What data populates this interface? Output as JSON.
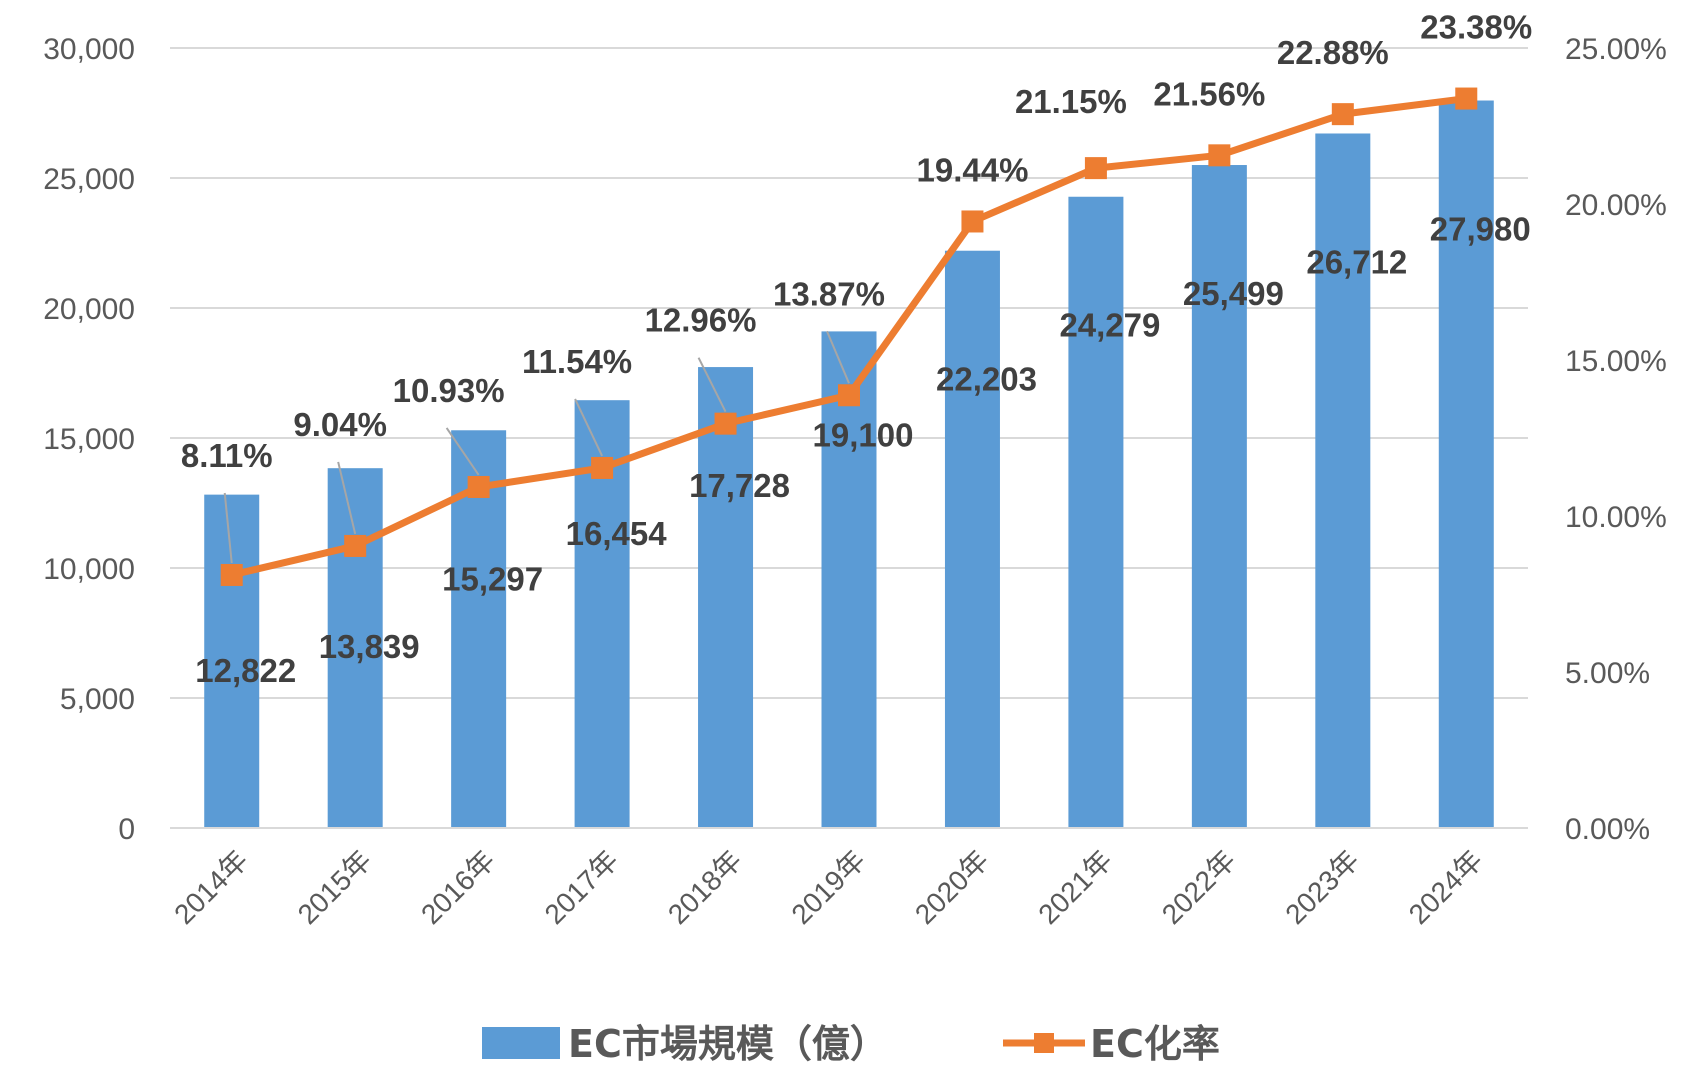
{
  "chart_data": {
    "type": "bar+line",
    "categories": [
      "2014年",
      "2015年",
      "2016年",
      "2017年",
      "2018年",
      "2019年",
      "2020年",
      "2021年",
      "2022年",
      "2023年",
      "2024年"
    ],
    "series": [
      {
        "name": "EC市場規模（億）",
        "type": "bar",
        "axis": "left",
        "color": "#5B9BD5",
        "values": [
          12822,
          13839,
          15297,
          16454,
          17728,
          19100,
          22203,
          24279,
          25499,
          26712,
          27980
        ],
        "labels": [
          "12,822",
          "13,839",
          "15,297",
          "16,454",
          "17,728",
          "19,100",
          "22,203",
          "24,279",
          "25,499",
          "26,712",
          "27,980"
        ]
      },
      {
        "name": "EC化率",
        "type": "line",
        "axis": "right",
        "color": "#ED7D31",
        "marker": "square",
        "values": [
          8.11,
          9.04,
          10.93,
          11.54,
          12.96,
          13.87,
          19.44,
          21.15,
          21.56,
          22.88,
          23.38
        ],
        "labels": [
          "8.11%",
          "9.04%",
          "10.93%",
          "11.54%",
          "12.96%",
          "13.87%",
          "19.44%",
          "21.15%",
          "21.56%",
          "22.88%",
          "23.38%"
        ]
      }
    ],
    "y_left": {
      "ylim": [
        0,
        30000
      ],
      "ticks": [
        "0",
        "5,000",
        "10,000",
        "15,000",
        "20,000",
        "25,000",
        "30,000"
      ]
    },
    "y_right": {
      "ylim": [
        0,
        25
      ],
      "ticks": [
        "0.00%",
        "5.00%",
        "10.00%",
        "15.00%",
        "20.00%",
        "25.00%"
      ]
    },
    "grid": true,
    "legend": "bottom",
    "x_tick_rotation": "diagonal"
  }
}
